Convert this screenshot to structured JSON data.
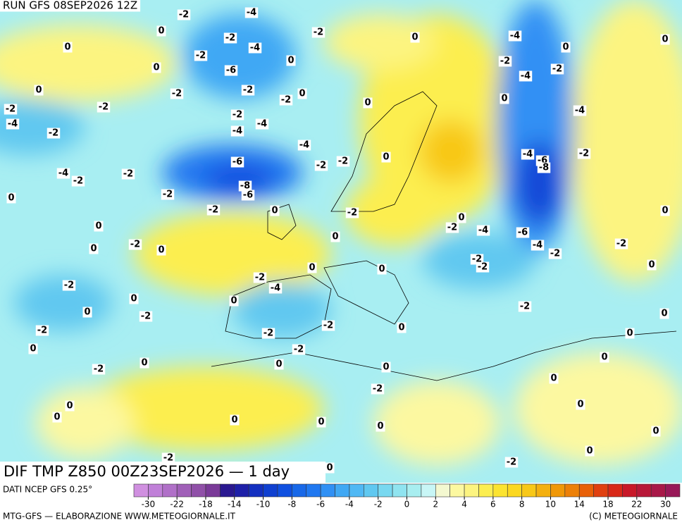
{
  "header": {
    "run": "RUN GFS 08SEP2026 12Z"
  },
  "map": {
    "title": "DIF TMP Z850 00Z23SEP2026 — 1 day",
    "labels": [
      "-2",
      "-4",
      "0",
      "0",
      "-2",
      "-4",
      "-2",
      "-6",
      "0",
      "0",
      "-2",
      "0",
      "-4",
      "0",
      "0",
      "-2",
      "-4",
      "-2",
      "0",
      "-2",
      "-2",
      "-2",
      "0",
      "-2",
      "-2",
      "0",
      "0",
      "-4",
      "-4",
      "-2",
      "-4",
      "-4",
      "-2",
      "-4",
      "0",
      "-6",
      "-2",
      "-2",
      "-4",
      "-6",
      "-2",
      "-4",
      "-2",
      "-2",
      "-8",
      "-8",
      "-2",
      "-6",
      "0",
      "-2",
      "0",
      "-2",
      "0",
      "0",
      "0",
      "-2",
      "-4",
      "-6",
      "0",
      "-4",
      "-2",
      "0",
      "0",
      "-2",
      "-2",
      "-2",
      "-2",
      "0",
      "0",
      "0",
      "-2",
      "-2",
      "-4",
      "0",
      "0",
      "-2",
      "0",
      "-2",
      "0",
      "-2",
      "-2",
      "0",
      "-2",
      "0",
      "0",
      "-2",
      "0",
      "0",
      "0",
      "-2",
      "0",
      "0",
      "-2",
      "0",
      "0",
      "0",
      "0",
      "0",
      "0",
      "0",
      "0",
      "-2",
      "-2",
      "0"
    ]
  },
  "colorbar": {
    "colors": [
      "#d090e0",
      "#c080d8",
      "#b070c8",
      "#a060b8",
      "#9050a8",
      "#7a3a98",
      "#2a1890",
      "#1e20a8",
      "#1430c0",
      "#1040d0",
      "#1050e0",
      "#1868e8",
      "#2078f0",
      "#3090f4",
      "#40a8f4",
      "#50b8f4",
      "#60c8f0",
      "#78d8f0",
      "#90e4f0",
      "#a8eef0",
      "#c8f6f6",
      "#f4f8d0",
      "#fcf8a0",
      "#fcf480",
      "#fcee50",
      "#fce430",
      "#fcd820",
      "#f8c818",
      "#f4b010",
      "#f09808",
      "#ec8008",
      "#e86008",
      "#e04010",
      "#d82818",
      "#c81828",
      "#b81838",
      "#a81848",
      "#981858"
    ],
    "ticks": [
      -30,
      -22,
      -18,
      -14,
      -10,
      -8,
      -6,
      -4,
      -2,
      0,
      2,
      4,
      6,
      8,
      10,
      14,
      18,
      22,
      30
    ]
  },
  "footer": {
    "source": "DATI NCEP GFS 0.25°",
    "credit": "MTG-GFS — ELABORAZIONE WWW.METEOGIORNALE.IT",
    "copyright": "(C) METEOGIORNALE"
  }
}
